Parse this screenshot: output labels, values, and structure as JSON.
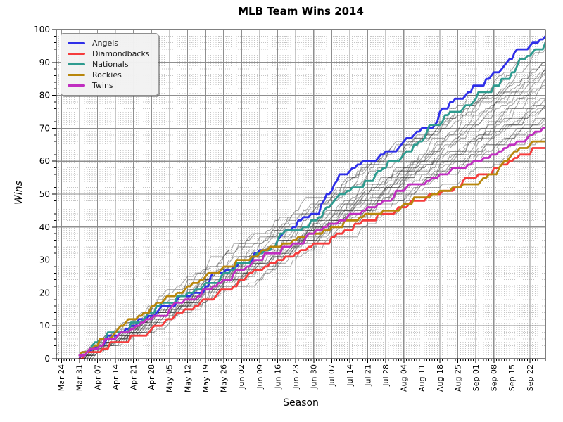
{
  "chart_data": {
    "type": "line",
    "title": "MLB Team Wins 2014",
    "xlabel": "Season",
    "ylabel": "Wins",
    "ylim": [
      0,
      100
    ],
    "y_major_ticks": [
      0,
      10,
      20,
      30,
      40,
      50,
      60,
      70,
      80,
      90,
      100
    ],
    "y_minor_step": 2,
    "x_tick_labels": [
      "Mar 24",
      "Mar 31",
      "Apr 07",
      "Apr 14",
      "Apr 21",
      "Apr 28",
      "May 05",
      "May 12",
      "May 19",
      "May 26",
      "Jun 02",
      "Jun 09",
      "Jun 16",
      "Jun 23",
      "Jun 30",
      "Jul 07",
      "Jul 14",
      "Jul 21",
      "Jul 28",
      "Aug 04",
      "Aug 11",
      "Aug 18",
      "Aug 25",
      "Sep 01",
      "Sep 08",
      "Sep 15",
      "Sep 22"
    ],
    "x_minor_step_days": 1,
    "legend_position": "upper-left",
    "grid": {
      "major_color": "#8f8f8f",
      "minor_color": "#c6c6c6",
      "minor_dashed": true
    },
    "anchor_dates": [
      "Mar 31",
      "Apr 07",
      "Apr 14",
      "Apr 21",
      "Apr 28",
      "May 05",
      "May 12",
      "May 19",
      "May 26",
      "Jun 02",
      "Jun 09",
      "Jun 16",
      "Jun 23",
      "Jun 30",
      "Jul 07",
      "Jul 14",
      "Jul 21",
      "Jul 28",
      "Aug 04",
      "Aug 11",
      "Aug 18",
      "Aug 25",
      "Sep 01",
      "Sep 08",
      "Sep 15",
      "Sep 22",
      "Sep 28"
    ],
    "series": [
      {
        "name": "Angels",
        "color": "#2f2fe8",
        "values": [
          0,
          4,
          7,
          10,
          13,
          16,
          19,
          22,
          26,
          29,
          33,
          36,
          40,
          44,
          51,
          57,
          60,
          63,
          66,
          70,
          75,
          79,
          83,
          87,
          91,
          95,
          98
        ]
      },
      {
        "name": "Diamondbacks",
        "color": "#f53c3c",
        "values": [
          0,
          2,
          5,
          7,
          9,
          12,
          15,
          18,
          21,
          24,
          27,
          30,
          32,
          35,
          37,
          39,
          42,
          44,
          46,
          48,
          50,
          52,
          55,
          58,
          60,
          62,
          64
        ]
      },
      {
        "name": "Nationals",
        "color": "#2e9b8f",
        "values": [
          1,
          5,
          8,
          11,
          14,
          17,
          20,
          23,
          26,
          29,
          32,
          36,
          39,
          42,
          47,
          51,
          54,
          58,
          62,
          66,
          71,
          75,
          79,
          83,
          87,
          92,
          96
        ]
      },
      {
        "name": "Rockies",
        "color": "#b8860b",
        "values": [
          1,
          4,
          8,
          12,
          16,
          19,
          22,
          25,
          28,
          30,
          32,
          34,
          36,
          38,
          40,
          42,
          44,
          45,
          47,
          49,
          51,
          52,
          53,
          56,
          62,
          65,
          66
        ]
      },
      {
        "name": "Twins",
        "color": "#c02ec0",
        "values": [
          1,
          3,
          6,
          9,
          12,
          15,
          18,
          21,
          24,
          27,
          30,
          32,
          35,
          38,
          41,
          44,
          46,
          48,
          51,
          53,
          56,
          58,
          60,
          62,
          65,
          68,
          70
        ]
      }
    ],
    "other_teams": {
      "color": "#404040",
      "opacity": 0.45,
      "final_wins": [
        96,
        94,
        90,
        90,
        89,
        88,
        88,
        88,
        87,
        85,
        84,
        83,
        82,
        79,
        79,
        77,
        77,
        77,
        76,
        73,
        73,
        73,
        71,
        70,
        67
      ],
      "early_start_index": 1,
      "early_start_wins": 2
    }
  }
}
